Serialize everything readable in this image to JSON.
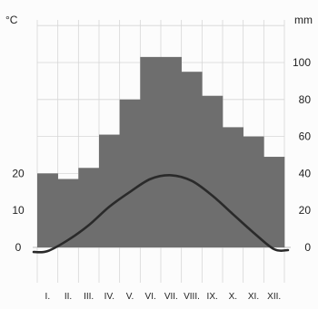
{
  "chart_data": {
    "type": "bar+line",
    "title": "",
    "left_unit": "°C",
    "right_unit": "mm",
    "categories": [
      "I.",
      "II.",
      "III.",
      "IV.",
      "V.",
      "VI.",
      "VII.",
      "VIII.",
      "IX.",
      "X.",
      "XI.",
      "XII."
    ],
    "left_ticks": [
      0,
      10,
      20
    ],
    "right_ticks": [
      0,
      20,
      40,
      60,
      80,
      100
    ],
    "precipitation_ylim": [
      0,
      100
    ],
    "precipitation_mm": [
      40,
      37,
      43,
      61,
      80,
      103,
      103,
      95,
      82,
      65,
      60,
      49
    ],
    "temperature_ylim": [
      0,
      20
    ],
    "temperature_c": [
      -1,
      2,
      6,
      11,
      15,
      18.5,
      19.5,
      18,
      14,
      9,
      4,
      -0.5
    ],
    "grid": true,
    "colors": {
      "bars": "#6e6e6e",
      "line": "#2a2a2a",
      "grid": "#d6d6d6"
    }
  }
}
